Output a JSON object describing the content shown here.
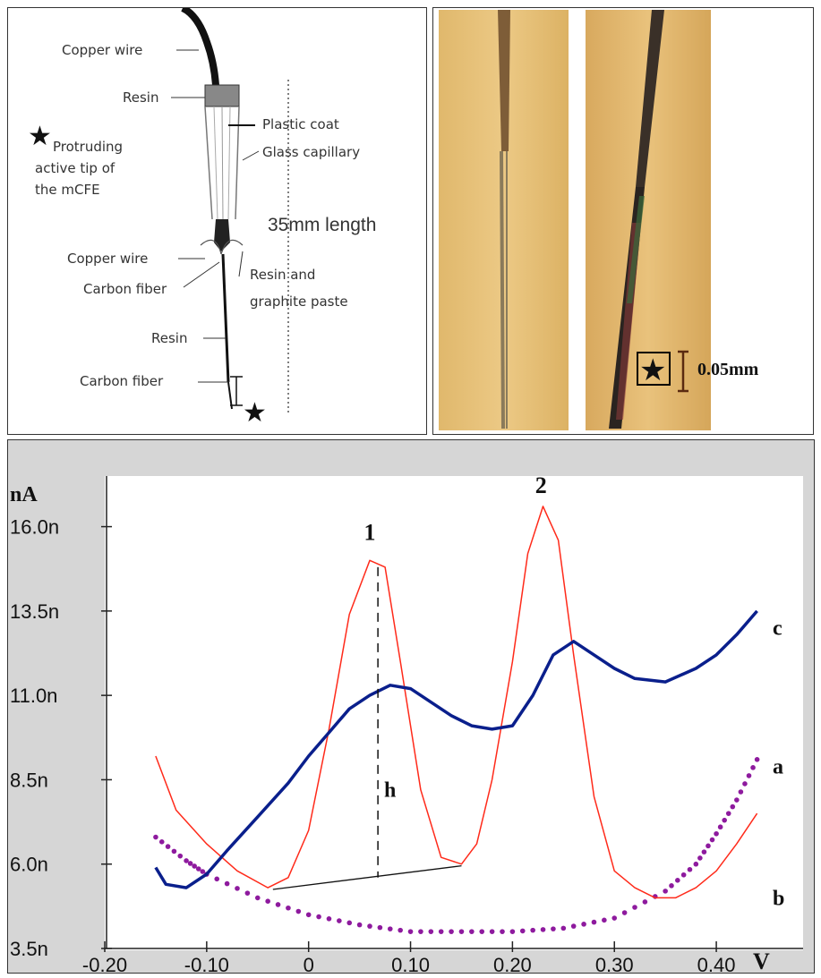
{
  "diagram": {
    "labels": {
      "copper_wire_top": "Copper wire",
      "resin_top": "Resin",
      "plastic_coat": "Plastic coat",
      "glass_capillary": "Glass capillary",
      "star_line1": "Protruding",
      "star_line2": "active tip of",
      "star_line3": "the mCFE",
      "length": "35mm length",
      "copper_wire_mid": "Copper wire",
      "carbon_fiber_mid": "Carbon fiber",
      "resin_paste1": "Resin and",
      "resin_paste2": "graphite paste",
      "resin_low": "Resin",
      "carbon_fiber_low": "Carbon fiber"
    }
  },
  "photo": {
    "scale_label": "0.05mm",
    "star_icon": "star-icon"
  },
  "colors": {
    "series_a": "#8e1a9e",
    "series_b": "#ff2a1a",
    "series_c": "#0a1f8c",
    "plot_bg": "#ffffff",
    "panel_bg": "#d6d6d6"
  },
  "chart_data": {
    "type": "line",
    "ylabel": "nA",
    "xlabel": "V",
    "xlim": [
      -0.2,
      0.45
    ],
    "ylim": [
      3.5,
      17.5
    ],
    "x_ticks": [
      "-0.20",
      "-0.10",
      "0",
      "0.10",
      "0.20",
      "0.30",
      "0.40"
    ],
    "x_tick_values": [
      -0.2,
      -0.1,
      0,
      0.1,
      0.2,
      0.3,
      0.4
    ],
    "y_ticks": [
      "3.5n",
      "6.0n",
      "8.5n",
      "11.0n",
      "13.5n",
      "16.0n"
    ],
    "y_tick_values": [
      3.5,
      6.0,
      8.5,
      11.0,
      13.5,
      16.0
    ],
    "annotations": {
      "peak1": "1",
      "peak2": "2",
      "height": "h"
    },
    "series": [
      {
        "name": "a",
        "style": "dotted",
        "x": [
          -0.15,
          -0.12,
          -0.1,
          -0.05,
          0.0,
          0.05,
          0.1,
          0.15,
          0.2,
          0.25,
          0.3,
          0.35,
          0.38,
          0.4,
          0.42,
          0.44
        ],
        "y": [
          6.8,
          6.1,
          5.7,
          5.0,
          4.5,
          4.2,
          4.0,
          4.0,
          4.0,
          4.1,
          4.4,
          5.2,
          6.0,
          6.9,
          7.9,
          9.1
        ]
      },
      {
        "name": "b",
        "style": "solid-thin",
        "x": [
          -0.15,
          -0.13,
          -0.1,
          -0.07,
          -0.04,
          -0.02,
          0.0,
          0.02,
          0.04,
          0.06,
          0.075,
          0.09,
          0.11,
          0.13,
          0.15,
          0.165,
          0.18,
          0.2,
          0.215,
          0.23,
          0.245,
          0.26,
          0.28,
          0.3,
          0.32,
          0.34,
          0.36,
          0.38,
          0.4,
          0.42,
          0.44
        ],
        "y": [
          9.2,
          7.6,
          6.6,
          5.8,
          5.3,
          5.6,
          7.0,
          10.0,
          13.4,
          15.0,
          14.8,
          12.0,
          8.2,
          6.2,
          6.0,
          6.6,
          8.5,
          12.0,
          15.2,
          16.6,
          15.6,
          12.2,
          8.0,
          5.8,
          5.3,
          5.0,
          5.0,
          5.3,
          5.8,
          6.6,
          7.5
        ]
      },
      {
        "name": "c",
        "style": "solid-thick",
        "x": [
          -0.15,
          -0.14,
          -0.12,
          -0.1,
          -0.08,
          -0.05,
          -0.02,
          0.0,
          0.02,
          0.04,
          0.06,
          0.08,
          0.1,
          0.12,
          0.14,
          0.16,
          0.18,
          0.2,
          0.22,
          0.24,
          0.26,
          0.28,
          0.3,
          0.32,
          0.35,
          0.38,
          0.4,
          0.42,
          0.44
        ],
        "y": [
          5.9,
          5.4,
          5.3,
          5.7,
          6.4,
          7.4,
          8.4,
          9.2,
          9.9,
          10.6,
          11.0,
          11.3,
          11.2,
          10.8,
          10.4,
          10.1,
          10.0,
          10.1,
          11.0,
          12.2,
          12.6,
          12.2,
          11.8,
          11.5,
          11.4,
          11.8,
          12.2,
          12.8,
          13.5
        ]
      }
    ]
  }
}
